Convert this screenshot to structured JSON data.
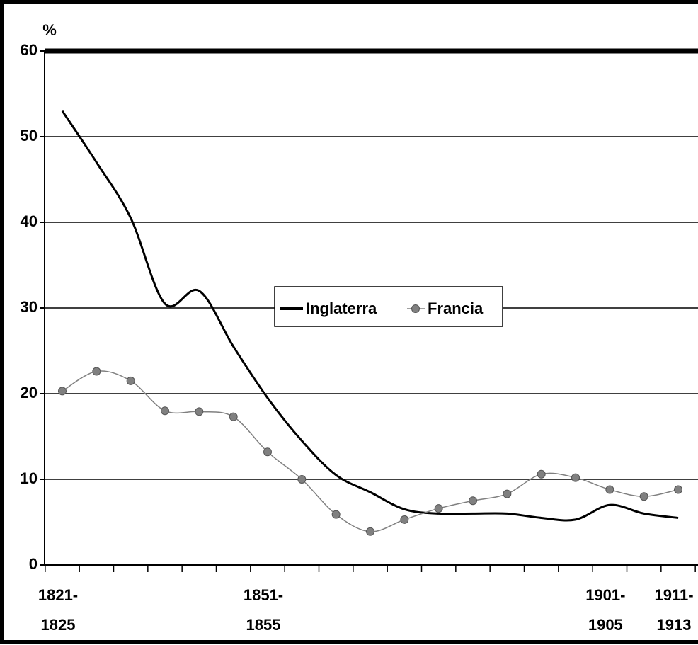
{
  "chart_data": {
    "type": "line",
    "y_label": "%",
    "categories": [
      "1821-\n1825",
      null,
      null,
      null,
      null,
      null,
      "1851-\n1855",
      null,
      null,
      null,
      null,
      null,
      null,
      null,
      null,
      null,
      "1901-\n1905",
      null,
      "1911-\n1913"
    ],
    "series": [
      {
        "name": "Inglaterra",
        "color": "#000000",
        "values": [
          53,
          47,
          40.5,
          30.5,
          32,
          25.5,
          19.5,
          14.5,
          10.5,
          8.5,
          6.5,
          6,
          6,
          6,
          5.5,
          5.3,
          7,
          6,
          5.5
        ]
      },
      {
        "name": "Francia",
        "color": "#808080",
        "values": [
          20.3,
          22.6,
          21.5,
          18,
          17.9,
          17.3,
          13.2,
          10,
          5.9,
          3.9,
          5.3,
          6.6,
          7.5,
          8.3,
          10.6,
          10.2,
          8.8,
          8,
          8.8
        ]
      }
    ],
    "ylim": [
      0,
      60
    ],
    "yticks": [
      0,
      10,
      20,
      30,
      40,
      50,
      60
    ],
    "grid": true,
    "legend": "center"
  }
}
